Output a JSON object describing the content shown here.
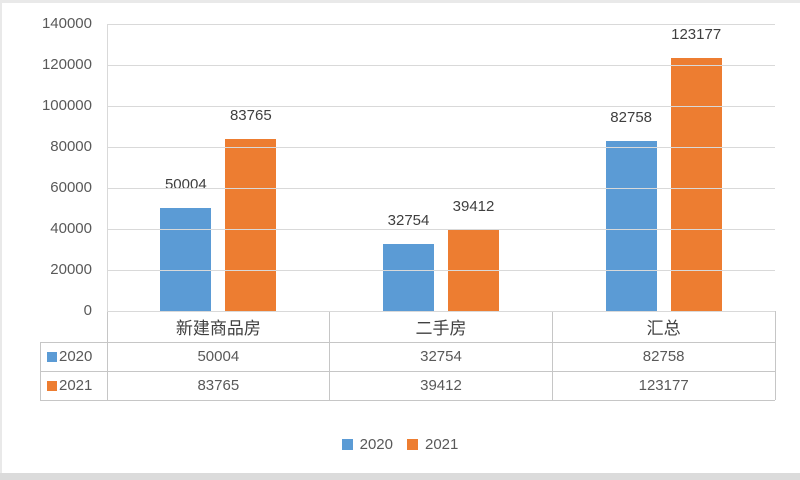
{
  "chart_data": {
    "type": "bar",
    "categories": [
      "新建商品房",
      "二手房",
      "汇总"
    ],
    "series": [
      {
        "name": "2020",
        "color": "#5B9BD5",
        "values": [
          50004,
          32754,
          82758
        ]
      },
      {
        "name": "2021",
        "color": "#ED7D31",
        "values": [
          83765,
          39412,
          123177
        ]
      }
    ],
    "title": "",
    "xlabel": "",
    "ylabel": "",
    "ylim": [
      0,
      140000
    ],
    "yticks": [
      0,
      20000,
      40000,
      60000,
      80000,
      100000,
      120000,
      140000
    ],
    "grid": true,
    "data_labels": true,
    "legend_position": "bottom",
    "data_table_shown": true
  },
  "data_table": {
    "header": [
      "新建商品房",
      "二手房",
      "汇总"
    ],
    "rows": [
      {
        "key": "2020",
        "color": "#5B9BD5",
        "values": [
          "50004",
          "32754",
          "82758"
        ]
      },
      {
        "key": "2021",
        "color": "#ED7D31",
        "values": [
          "83765",
          "39412",
          "123177"
        ]
      }
    ]
  },
  "legend": {
    "items": [
      {
        "label": "2020",
        "color": "#5B9BD5"
      },
      {
        "label": "2021",
        "color": "#ED7D31"
      }
    ]
  },
  "colors": {
    "series_2020": "#5B9BD5",
    "series_2021": "#ED7D31",
    "gridline": "#D9D9D9",
    "table_border": "#C6C6C6",
    "axis_text": "#595959",
    "data_label_text": "#3F3F3F",
    "header_text": "#404040",
    "frame_edge": "#E9E9E9",
    "bottom_strip": "#DBDBDB"
  }
}
